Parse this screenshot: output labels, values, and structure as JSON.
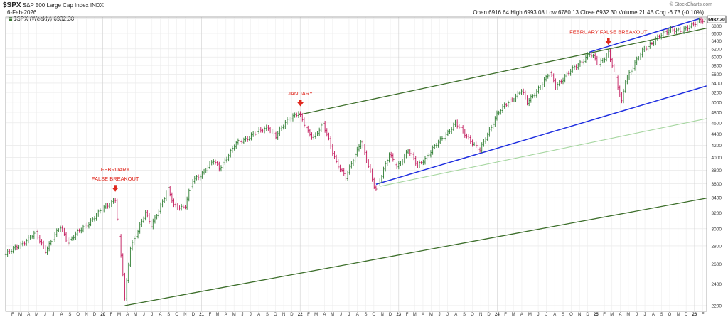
{
  "header": {
    "symbol": "$SPX",
    "name": "S&P 500 Large Cap Index",
    "exchange": "INDX",
    "date": "6-Feb-2026",
    "legend": "$SPX (Weekly) 6932.30",
    "ohlc": "Open 6916.64  High 6993.08  Low 6780.13  Close 6932.30  Volume 21.4B  Chg -6.73 (-0.10%)",
    "watermark": "© StockCharts.com",
    "price_tag": "6932.30"
  },
  "colors": {
    "up": "#2e7d32",
    "down": "#c2185b",
    "trend_green": "#3c6e2a",
    "trend_blue": "#1e2ee0",
    "trend_light": "#a6d6a0",
    "arrow": "#e0281e"
  },
  "chart_data": {
    "type": "ohlc",
    "yscale": "log",
    "ylim": [
      2150,
      7050
    ],
    "y_ticks": [
      2200,
      2400,
      2600,
      2800,
      3000,
      3200,
      3400,
      3600,
      3800,
      4000,
      4200,
      4400,
      4600,
      4800,
      5000,
      5200,
      5400,
      5600,
      5800,
      6000,
      6200,
      6400,
      6600,
      6800,
      7000
    ],
    "x_start": "2019-01-06",
    "x_end": "2026-02-15",
    "x_tick_labels": [
      "F",
      "M",
      "A",
      "M",
      "J",
      "J",
      "A",
      "S",
      "O",
      "N",
      "D",
      "20",
      "F",
      "M",
      "A",
      "M",
      "J",
      "J",
      "A",
      "S",
      "O",
      "N",
      "D",
      "21",
      "F",
      "M",
      "A",
      "M",
      "J",
      "J",
      "A",
      "S",
      "O",
      "N",
      "D",
      "22",
      "F",
      "M",
      "A",
      "M",
      "J",
      "J",
      "A",
      "S",
      "O",
      "N",
      "D",
      "23",
      "F",
      "M",
      "A",
      "M",
      "J",
      "J",
      "A",
      "S",
      "O",
      "N",
      "D",
      "24",
      "F",
      "M",
      "A",
      "M",
      "J",
      "J",
      "A",
      "S",
      "O",
      "N",
      "D",
      "25",
      "F",
      "M",
      "A",
      "M",
      "J",
      "J",
      "A",
      "S",
      "O",
      "N",
      "D",
      "26",
      "F"
    ],
    "price_path": [
      [
        "2019-01-06",
        2700
      ],
      [
        "2019-04-28",
        2945
      ],
      [
        "2019-06-02",
        2750
      ],
      [
        "2019-07-28",
        3020
      ],
      [
        "2019-08-25",
        2850
      ],
      [
        "2019-10-13",
        2990
      ],
      [
        "2019-12-29",
        3240
      ],
      [
        "2020-02-16",
        3390
      ],
      [
        "2020-02-28",
        2950
      ],
      [
        "2020-03-15",
        2500
      ],
      [
        "2020-03-22",
        2250
      ],
      [
        "2020-04-12",
        2790
      ],
      [
        "2020-06-07",
        3190
      ],
      [
        "2020-06-28",
        3040
      ],
      [
        "2020-08-30",
        3510
      ],
      [
        "2020-09-20",
        3300
      ],
      [
        "2020-10-30",
        3270
      ],
      [
        "2020-11-29",
        3640
      ],
      [
        "2020-12-27",
        3730
      ],
      [
        "2021-02-14",
        3940
      ],
      [
        "2021-03-07",
        3830
      ],
      [
        "2021-05-09",
        4230
      ],
      [
        "2021-09-05",
        4530
      ],
      [
        "2021-10-03",
        4350
      ],
      [
        "2021-11-21",
        4700
      ],
      [
        "2021-12-26",
        4780
      ],
      [
        "2022-01-30",
        4430
      ],
      [
        "2022-02-20",
        4350
      ],
      [
        "2022-03-27",
        4570
      ],
      [
        "2022-05-15",
        3930
      ],
      [
        "2022-06-19",
        3680
      ],
      [
        "2022-08-14",
        4290
      ],
      [
        "2022-09-30",
        3580
      ],
      [
        "2022-10-09",
        3520
      ],
      [
        "2022-11-27",
        4050
      ],
      [
        "2022-12-26",
        3840
      ],
      [
        "2023-02-05",
        4130
      ],
      [
        "2023-03-12",
        3860
      ],
      [
        "2023-07-30",
        4590
      ],
      [
        "2023-10-29",
        4110
      ],
      [
        "2023-12-31",
        4770
      ],
      [
        "2024-03-31",
        5250
      ],
      [
        "2024-04-21",
        4980
      ],
      [
        "2024-07-14",
        5620
      ],
      [
        "2024-08-04",
        5350
      ],
      [
        "2024-12-08",
        6080
      ],
      [
        "2025-01-12",
        5830
      ],
      [
        "2025-02-16",
        6120
      ],
      [
        "2025-03-09",
        5650
      ],
      [
        "2025-04-06",
        5000
      ],
      [
        "2025-04-20",
        5480
      ],
      [
        "2025-06-29",
        6210
      ],
      [
        "2025-10-05",
        6740
      ],
      [
        "2025-11-16",
        6640
      ],
      [
        "2026-01-11",
        6950
      ],
      [
        "2026-02-08",
        6932
      ]
    ],
    "trendlines": [
      {
        "color": "trend_green",
        "width": 1.3,
        "points": [
          [
            "2020-03-22",
            2200
          ],
          [
            "2026-02-15",
            3395
          ]
        ]
      },
      {
        "color": "trend_green",
        "width": 1.3,
        "points": [
          [
            "2021-12-26",
            4750
          ],
          [
            "2026-02-15",
            6740
          ]
        ]
      },
      {
        "color": "trend_blue",
        "width": 1.5,
        "points": [
          [
            "2022-10-09",
            3590
          ],
          [
            "2026-02-15",
            5340
          ]
        ]
      },
      {
        "color": "trend_blue",
        "width": 1.5,
        "points": [
          [
            "2024-12-08",
            6120
          ],
          [
            "2026-01-18",
            7000
          ]
        ]
      },
      {
        "color": "trend_light",
        "width": 1.1,
        "points": [
          [
            "2022-10-23",
            3560
          ],
          [
            "2026-02-15",
            4680
          ]
        ]
      }
    ],
    "annotations": [
      {
        "lines": [
          "FEBRUARY",
          "FALSE BREAKOUT"
        ],
        "date": "2020-02-16",
        "price": 3400
      },
      {
        "lines": [
          "JANUARY"
        ],
        "date": "2022-01-02",
        "price": 4800
      },
      {
        "lines": [
          "FEBRUARY FALSE BREAKOUT"
        ],
        "date": "2025-02-16",
        "price": 6150
      }
    ]
  }
}
